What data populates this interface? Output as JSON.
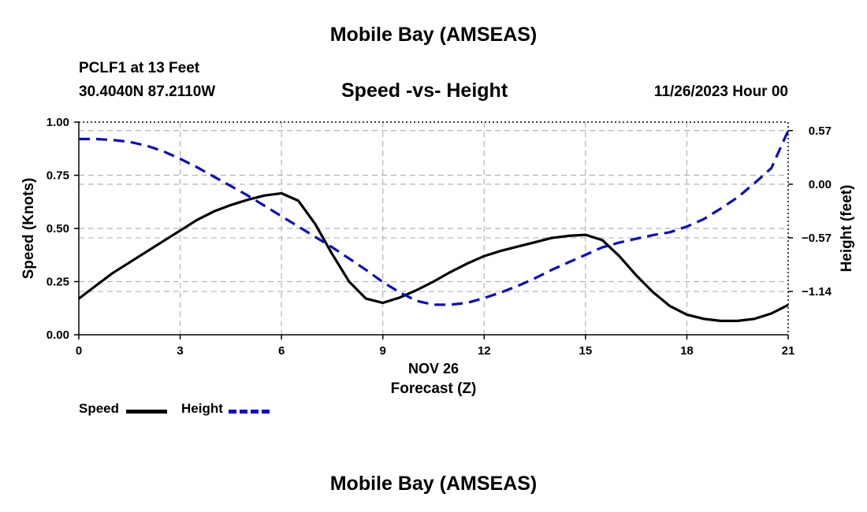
{
  "page": {
    "title": "Mobile Bay (AMSEAS)",
    "bottom_title": "Mobile Bay (AMSEAS)",
    "station": "PCLF1 at 13 Feet",
    "coords": "30.4040N  87.2110W",
    "date_label": "11/26/2023 Hour 00"
  },
  "chart_data": {
    "type": "line",
    "title": "Speed -vs- Height",
    "xlabel": "Forecast (Z)",
    "xlabel_date": "NOV 26",
    "ylabel": "Speed (Knots)",
    "y2label": "Height (feet)",
    "xlim": [
      0,
      21
    ],
    "ylim": [
      0,
      1
    ],
    "y2lim": [
      -1.6,
      0.66
    ],
    "x_ticks": [
      "0",
      "3",
      "6",
      "9",
      "12",
      "15",
      "18",
      "21"
    ],
    "y_ticks": [
      "0.00",
      "0.25",
      "0.50",
      "0.75",
      "1.00"
    ],
    "y2_ticks": [
      "0.57",
      "0.00",
      "−0.57",
      "−1.14"
    ],
    "y2_tick_values": [
      0.57,
      0.0,
      -0.57,
      -1.14
    ],
    "grid": true,
    "colors": {
      "speed": "#000000",
      "height": "#0a0acc",
      "grid": "#b4b4b4"
    },
    "legend": {
      "position": "bottom-left",
      "speed_label": "Speed",
      "height_label": "Height"
    },
    "series": [
      {
        "name": "Speed",
        "axis": "left",
        "style": "solid",
        "x": [
          0,
          0.5,
          1,
          1.5,
          2,
          2.5,
          3,
          3.5,
          4,
          4.5,
          5,
          5.5,
          6,
          6.5,
          7,
          7.5,
          8,
          8.5,
          9,
          9.5,
          10,
          10.5,
          11,
          11.5,
          12,
          12.5,
          13,
          13.5,
          14,
          14.5,
          15,
          15.5,
          16,
          16.5,
          17,
          17.5,
          18,
          18.5,
          19,
          19.5,
          20,
          20.5,
          21
        ],
        "values": [
          0.17,
          0.23,
          0.29,
          0.34,
          0.39,
          0.44,
          0.49,
          0.54,
          0.58,
          0.61,
          0.635,
          0.655,
          0.665,
          0.63,
          0.52,
          0.38,
          0.25,
          0.17,
          0.15,
          0.175,
          0.21,
          0.25,
          0.295,
          0.335,
          0.37,
          0.395,
          0.415,
          0.435,
          0.455,
          0.465,
          0.47,
          0.445,
          0.37,
          0.28,
          0.2,
          0.135,
          0.095,
          0.075,
          0.065,
          0.065,
          0.075,
          0.1,
          0.14
        ]
      },
      {
        "name": "Height",
        "axis": "right",
        "style": "dashed",
        "x": [
          0,
          0.5,
          1,
          1.5,
          2,
          2.5,
          3,
          3.5,
          4,
          4.5,
          5,
          5.5,
          6,
          6.5,
          7,
          7.5,
          8,
          8.5,
          9,
          9.5,
          10,
          10.5,
          11,
          11.5,
          12,
          12.5,
          13,
          13.5,
          14,
          14.5,
          15,
          15.5,
          16,
          16.5,
          17,
          17.5,
          18,
          18.5,
          19,
          19.5,
          20,
          20.5,
          21
        ],
        "values": [
          0.48,
          0.48,
          0.47,
          0.45,
          0.41,
          0.35,
          0.27,
          0.18,
          0.08,
          -0.02,
          -0.12,
          -0.23,
          -0.34,
          -0.45,
          -0.56,
          -0.67,
          -0.79,
          -0.91,
          -1.04,
          -1.15,
          -1.24,
          -1.28,
          -1.28,
          -1.26,
          -1.21,
          -1.15,
          -1.08,
          -1.0,
          -0.91,
          -0.83,
          -0.75,
          -0.67,
          -0.62,
          -0.58,
          -0.54,
          -0.51,
          -0.45,
          -0.37,
          -0.26,
          -0.14,
          0.01,
          0.17,
          0.57
        ]
      }
    ]
  }
}
